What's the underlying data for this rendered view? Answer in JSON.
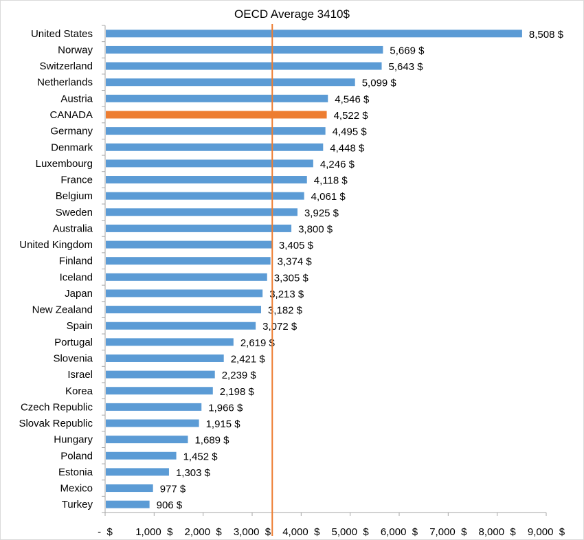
{
  "chart_data": {
    "type": "bar",
    "orientation": "horizontal",
    "title": "OECD Average 3410$",
    "xlabel": "",
    "ylabel": "",
    "xlim": [
      0,
      9000
    ],
    "grid": false,
    "legend": "none",
    "x_ticks": [
      0,
      1000,
      2000,
      3000,
      4000,
      5000,
      6000,
      7000,
      8000,
      9000
    ],
    "x_tick_labels": [
      "-  $",
      "1,000  $",
      "2,000  $",
      "3,000  $",
      "4,000  $",
      "5,000  $",
      "6,000  $",
      "7,000  $",
      "8,000  $",
      "9,000  $"
    ],
    "reference_line": {
      "label": "OECD Average",
      "value": 3410,
      "color": "#ed7d31"
    },
    "colors": {
      "default": "#5b9bd5",
      "highlight": "#ed7d31"
    },
    "highlight_category": "CANADA",
    "categories": [
      "United States",
      "Norway",
      "Switzerland",
      "Netherlands",
      "Austria",
      "CANADA",
      "Germany",
      "Denmark",
      "Luxembourg",
      "France",
      "Belgium",
      "Sweden",
      "Australia",
      "United Kingdom",
      "Finland",
      "Iceland",
      "Japan",
      "New Zealand",
      "Spain",
      "Portugal",
      "Slovenia",
      "Israel",
      "Korea",
      "Czech Republic",
      "Slovak Republic",
      "Hungary",
      "Poland",
      "Estonia",
      "Mexico",
      "Turkey"
    ],
    "values": [
      8508,
      5669,
      5643,
      5099,
      4546,
      4522,
      4495,
      4448,
      4246,
      4118,
      4061,
      3925,
      3800,
      3405,
      3374,
      3305,
      3213,
      3182,
      3072,
      2619,
      2421,
      2239,
      2198,
      1966,
      1915,
      1689,
      1452,
      1303,
      977,
      906
    ],
    "data_labels": [
      "8,508  $",
      "5,669  $",
      "5,643  $",
      "5,099  $",
      "4,546  $",
      "4,522  $",
      "4,495  $",
      "4,448  $",
      "4,246  $",
      "4,118  $",
      "4,061  $",
      "3,925  $",
      "3,800  $",
      "3,405  $",
      "3,374  $",
      "3,305  $",
      "3,213  $",
      "3,182  $",
      "3,072  $",
      "2,619  $",
      "2,421  $",
      "2,239  $",
      "2,198  $",
      "1,966  $",
      "1,915  $",
      "1,689  $",
      "1,452  $",
      "1,303  $",
      "977  $",
      "906  $"
    ]
  }
}
